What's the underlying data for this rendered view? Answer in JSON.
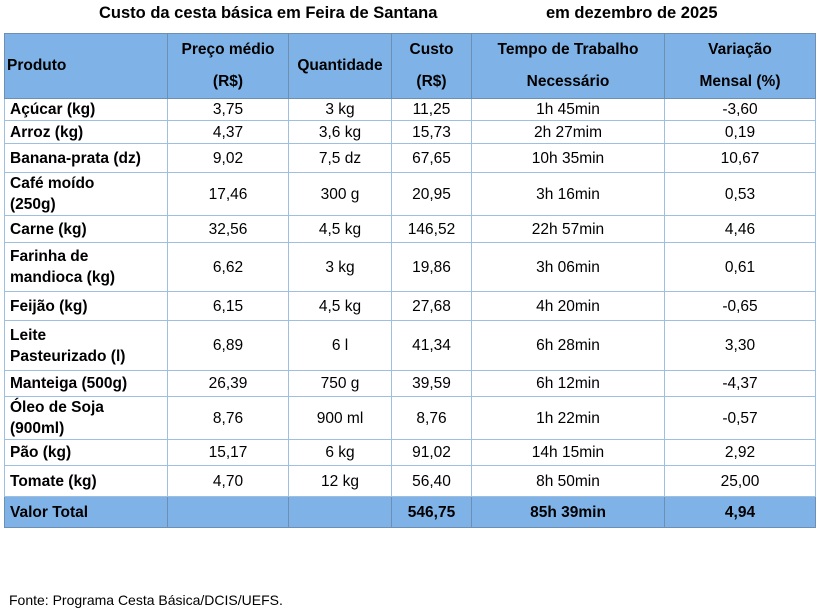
{
  "title": {
    "left": "Custo da cesta básica em Feira de Santana",
    "right": "em dezembro de 2025"
  },
  "headers": {
    "produto": "Produto",
    "preco_line1": "Preço médio",
    "preco_line2": "(R$)",
    "quantidade": "Quantidade",
    "custo_line1": "Custo",
    "custo_line2": "(R$)",
    "tempo_line1": "Tempo de Trabalho",
    "tempo_line2": "Necessário",
    "variacao_line1": "Variação",
    "variacao_line2": "Mensal (%)"
  },
  "rows": [
    {
      "produto_l1": "Açúcar (kg)",
      "produto_l2": "",
      "preco": "3,75",
      "quantidade": "3 kg",
      "custo": "11,25",
      "tempo": "1h 45min",
      "variacao": "-3,60"
    },
    {
      "produto_l1": "Arroz (kg)",
      "produto_l2": "",
      "preco": "4,37",
      "quantidade": "3,6 kg",
      "custo": "15,73",
      "tempo": "2h 27mim",
      "variacao": "0,19"
    },
    {
      "produto_l1": "Banana-prata (dz)",
      "produto_l2": "",
      "preco": "9,02",
      "quantidade": "7,5 dz",
      "custo": "67,65",
      "tempo": "10h 35min",
      "variacao": "10,67"
    },
    {
      "produto_l1": "Café moído",
      "produto_l2": "(250g)",
      "preco": "17,46",
      "quantidade": "300 g",
      "custo": "20,95",
      "tempo": "3h 16min",
      "variacao": "0,53"
    },
    {
      "produto_l1": "Carne (kg)",
      "produto_l2": "",
      "preco": "32,56",
      "quantidade": "4,5 kg",
      "custo": "146,52",
      "tempo": "22h 57min",
      "variacao": "4,46"
    },
    {
      "produto_l1": "Farinha de",
      "produto_l2": "mandioca (kg)",
      "preco": "6,62",
      "quantidade": "3 kg",
      "custo": "19,86",
      "tempo": "3h 06min",
      "variacao": "0,61"
    },
    {
      "produto_l1": "Feijão (kg)",
      "produto_l2": "",
      "preco": "6,15",
      "quantidade": "4,5 kg",
      "custo": "27,68",
      "tempo": "4h 20min",
      "variacao": "-0,65"
    },
    {
      "produto_l1": "Leite",
      "produto_l2": "Pasteurizado (l)",
      "preco": "6,89",
      "quantidade": "6 l",
      "custo": "41,34",
      "tempo": "6h 28min",
      "variacao": "3,30"
    },
    {
      "produto_l1": "Manteiga (500g)",
      "produto_l2": "",
      "preco": "26,39",
      "quantidade": "750 g",
      "custo": "39,59",
      "tempo": "6h 12min",
      "variacao": "-4,37"
    },
    {
      "produto_l1": "Óleo de Soja",
      "produto_l2": "(900ml)",
      "preco": "8,76",
      "quantidade": "900 ml",
      "custo": "8,76",
      "tempo": "1h 22min",
      "variacao": "-0,57"
    },
    {
      "produto_l1": "Pão (kg)",
      "produto_l2": "",
      "preco": "15,17",
      "quantidade": "6 kg",
      "custo": "91,02",
      "tempo": "14h 15min",
      "variacao": "2,92"
    },
    {
      "produto_l1": "Tomate (kg)",
      "produto_l2": "",
      "preco": "4,70",
      "quantidade": "12 kg",
      "custo": "56,40",
      "tempo": "8h 50min",
      "variacao": "25,00"
    }
  ],
  "total": {
    "label": "Valor Total",
    "custo": "546,75",
    "tempo": "85h 39min",
    "variacao": "4,94"
  },
  "source": "Fonte: Programa Cesta Básica/DCIS/UEFS."
}
